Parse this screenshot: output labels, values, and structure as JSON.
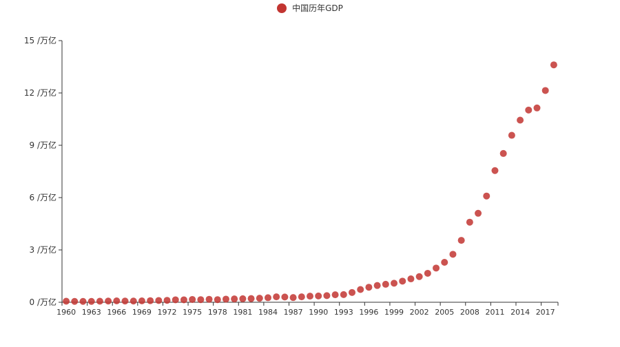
{
  "chart_data": {
    "type": "scatter",
    "legend": {
      "label": "中国历年GDP",
      "color": "#c23531"
    },
    "colors": {
      "point": "#c23531",
      "axis": "#333333"
    },
    "ylim": [
      0,
      15
    ],
    "yticks": [
      {
        "v": 0,
        "label": "0 /万亿"
      },
      {
        "v": 3,
        "label": "3 /万亿"
      },
      {
        "v": 6,
        "label": "6 /万亿"
      },
      {
        "v": 9,
        "label": "9 /万亿"
      },
      {
        "v": 12,
        "label": "12 /万亿"
      },
      {
        "v": 15,
        "label": "15 /万亿"
      }
    ],
    "xtick_labels": [
      "1960",
      "1963",
      "1966",
      "1969",
      "1972",
      "1975",
      "1978",
      "1981",
      "1984",
      "1987",
      "1990",
      "1993",
      "1996",
      "1999",
      "2002",
      "2005",
      "2008",
      "2011",
      "2014",
      "2017"
    ],
    "series": [
      {
        "name": "中国历年GDP",
        "x": [
          1960,
          1961,
          1962,
          1963,
          1964,
          1965,
          1966,
          1967,
          1968,
          1969,
          1970,
          1971,
          1972,
          1973,
          1974,
          1975,
          1976,
          1977,
          1978,
          1979,
          1980,
          1981,
          1982,
          1983,
          1984,
          1985,
          1986,
          1987,
          1988,
          1989,
          1990,
          1991,
          1992,
          1993,
          1994,
          1995,
          1996,
          1997,
          1998,
          1999,
          2000,
          2001,
          2002,
          2003,
          2004,
          2005,
          2006,
          2007,
          2008,
          2009,
          2010,
          2011,
          2012,
          2013,
          2014,
          2015,
          2016,
          2017,
          2018
        ],
        "values": [
          0.06,
          0.05,
          0.05,
          0.05,
          0.06,
          0.07,
          0.08,
          0.07,
          0.07,
          0.08,
          0.09,
          0.1,
          0.11,
          0.14,
          0.14,
          0.16,
          0.15,
          0.17,
          0.15,
          0.18,
          0.19,
          0.2,
          0.21,
          0.23,
          0.26,
          0.31,
          0.3,
          0.27,
          0.31,
          0.35,
          0.36,
          0.38,
          0.43,
          0.44,
          0.56,
          0.73,
          0.86,
          0.96,
          1.03,
          1.09,
          1.21,
          1.34,
          1.47,
          1.66,
          1.96,
          2.29,
          2.75,
          3.55,
          4.59,
          5.1,
          6.09,
          7.55,
          8.53,
          9.57,
          10.44,
          11.02,
          11.14,
          12.14,
          13.61
        ]
      }
    ]
  }
}
